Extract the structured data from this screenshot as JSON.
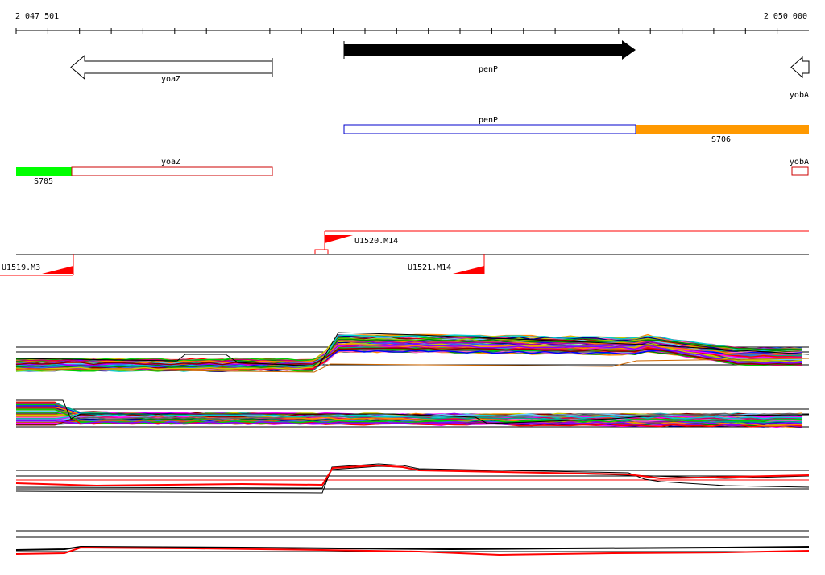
{
  "ruler": {
    "start_label": "2 047 501",
    "end_label": "2 050 000"
  },
  "genes": {
    "yoaZ": "yoaZ",
    "penP": "penP",
    "yobA": "yobA"
  },
  "transcripts": {
    "penP_label": "penP",
    "s706_label": "S706",
    "yoaZ_label": "yoaZ",
    "s705_label": "S705",
    "yobA_label": "yobA"
  },
  "upshifts": {
    "u1520": "U1520.M14",
    "u1519": "U1519.M3",
    "u1521": "U1521.M14"
  },
  "colors": {
    "gene_fill": "#000000",
    "transcript_outline_blue": "#0000cc",
    "transcript_outline_red": "#cc0000",
    "s706": "#ff9900",
    "s705": "#00ff00",
    "shift_flag": "#ff0000",
    "expression_accent": "#ff0000"
  },
  "chart_data": {
    "type": "line",
    "title": "",
    "xlabel": "",
    "ylabel": "",
    "xlim": [
      2047501,
      2050000
    ],
    "panels": [
      {
        "name": "",
        "series_count": "many",
        "shift_position": 2048470
      },
      {
        "name": "",
        "series_count": "many",
        "shift_position": 2047650
      },
      {
        "name": "",
        "series_count": "few",
        "shift_position": 2048470
      },
      {
        "name": "",
        "series_count": "few",
        "shift_position": null
      }
    ]
  }
}
